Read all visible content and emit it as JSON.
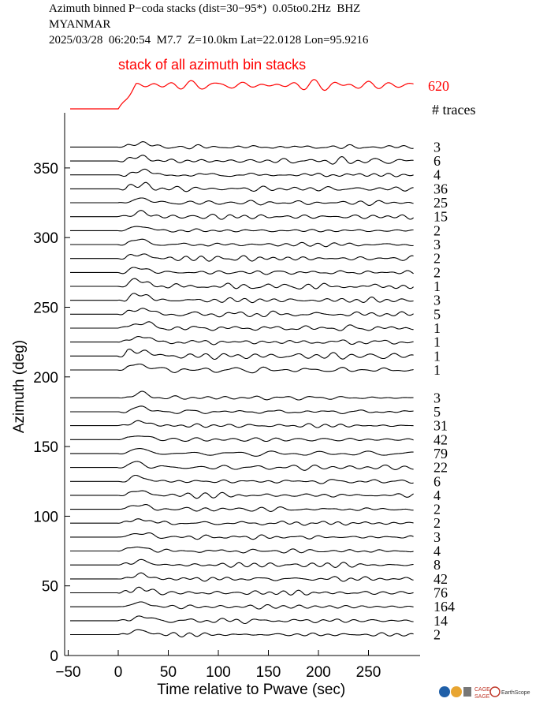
{
  "header": {
    "line1": "Azimuth binned P−coda stacks (dist=30−95*)  0.05to0.2Hz  BHZ",
    "line2": "MYANMAR",
    "line3": "2025/03/28  06:20:54  M7.7  Z=10.0km Lat=22.0128 Lon=95.9216"
  },
  "colors": {
    "stack_trace": "#ff0000",
    "traces": "#000000",
    "axes": "#000000"
  },
  "chart_data": {
    "type": "line",
    "title": "",
    "xlabel": "Time relative to Pwave (sec)",
    "ylabel": "Azimuth (deg)",
    "xlim": [
      -50,
      297
    ],
    "ylim": [
      0,
      374
    ],
    "x_ticks": [
      -50,
      0,
      50,
      100,
      150,
      200,
      250
    ],
    "x_tick_labels": [
      "−50",
      "0",
      "50",
      "100",
      "150",
      "200",
      "250"
    ],
    "y_ticks": [
      0,
      50,
      100,
      150,
      200,
      250,
      300,
      350
    ],
    "y_tick_labels": [
      "0",
      "50",
      "100",
      "150",
      "200",
      "250",
      "300",
      "350"
    ],
    "stack": {
      "label": "stack of all azimuth bin stacks",
      "total_traces": "620"
    },
    "count_header": "# traces",
    "trace_start_x": -48,
    "bins": [
      {
        "azimuth": 365,
        "traces": "3"
      },
      {
        "azimuth": 355,
        "traces": "6"
      },
      {
        "azimuth": 345,
        "traces": "4"
      },
      {
        "azimuth": 335,
        "traces": "36"
      },
      {
        "azimuth": 325,
        "traces": "25"
      },
      {
        "azimuth": 315,
        "traces": "15"
      },
      {
        "azimuth": 305,
        "traces": "2"
      },
      {
        "azimuth": 295,
        "traces": "3"
      },
      {
        "azimuth": 285,
        "traces": "2"
      },
      {
        "azimuth": 275,
        "traces": "2"
      },
      {
        "azimuth": 265,
        "traces": "1"
      },
      {
        "azimuth": 255,
        "traces": "3"
      },
      {
        "azimuth": 245,
        "traces": "5"
      },
      {
        "azimuth": 235,
        "traces": "1"
      },
      {
        "azimuth": 225,
        "traces": "1"
      },
      {
        "azimuth": 215,
        "traces": "1"
      },
      {
        "azimuth": 205,
        "traces": "1"
      },
      {
        "azimuth": 185,
        "traces": "3"
      },
      {
        "azimuth": 175,
        "traces": "5"
      },
      {
        "azimuth": 165,
        "traces": "31"
      },
      {
        "azimuth": 155,
        "traces": "42"
      },
      {
        "azimuth": 145,
        "traces": "79"
      },
      {
        "azimuth": 135,
        "traces": "22"
      },
      {
        "azimuth": 125,
        "traces": "6"
      },
      {
        "azimuth": 115,
        "traces": "4"
      },
      {
        "azimuth": 105,
        "traces": "2"
      },
      {
        "azimuth": 95,
        "traces": "2"
      },
      {
        "azimuth": 85,
        "traces": "3"
      },
      {
        "azimuth": 75,
        "traces": "4"
      },
      {
        "azimuth": 65,
        "traces": "8"
      },
      {
        "azimuth": 55,
        "traces": "42"
      },
      {
        "azimuth": 45,
        "traces": "76"
      },
      {
        "azimuth": 35,
        "traces": "164"
      },
      {
        "azimuth": 25,
        "traces": "14"
      },
      {
        "azimuth": 15,
        "traces": "2"
      }
    ]
  },
  "footer": {
    "logo1": "CAGE",
    "logo2": "SAGE",
    "logo3": "EarthScope"
  }
}
